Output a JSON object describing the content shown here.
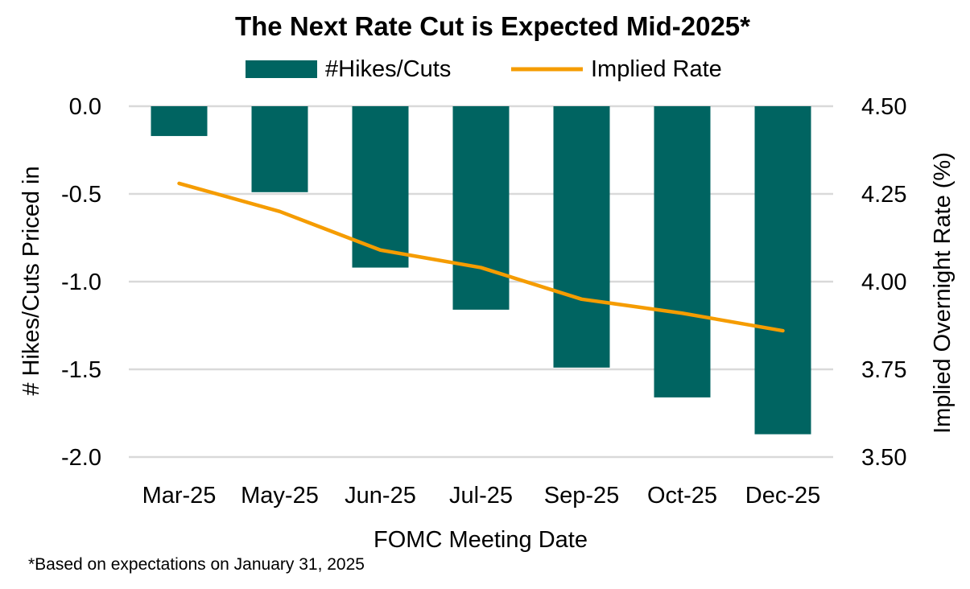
{
  "chart_data": {
    "type": "bar",
    "title": "The Next Rate Cut is Expected Mid-2025*",
    "xlabel": "FOMC Meeting Date",
    "ylabel": "# Hikes/Cuts Priced in",
    "y2label": "Implied Overnight Rate (%)",
    "categories": [
      "Mar-25",
      "May-25",
      "Jun-25",
      "Jul-25",
      "Sep-25",
      "Oct-25",
      "Dec-25"
    ],
    "series": [
      {
        "name": "#Hikes/Cuts",
        "type": "bar",
        "axis": "left",
        "color": "#006461",
        "values": [
          -0.17,
          -0.49,
          -0.92,
          -1.16,
          -1.49,
          -1.66,
          -1.87
        ]
      },
      {
        "name": "Implied Rate",
        "type": "line",
        "axis": "right",
        "color": "#F59C00",
        "values": [
          4.28,
          4.2,
          4.09,
          4.04,
          3.95,
          3.91,
          3.86
        ]
      }
    ],
    "ylim": [
      -2.0,
      0.0
    ],
    "yticks": [
      "0.0",
      "-0.5",
      "-1.0",
      "-1.5",
      "-2.0"
    ],
    "ytick_values": [
      0.0,
      -0.5,
      -1.0,
      -1.5,
      -2.0
    ],
    "y2lim": [
      3.5,
      4.5
    ],
    "y2ticks": [
      "4.50",
      "4.25",
      "4.00",
      "3.75",
      "3.50"
    ],
    "y2tick_values": [
      4.5,
      4.25,
      4.0,
      3.75,
      3.5
    ],
    "grid": true,
    "legend": "top-center",
    "footnote": "*Based on expectations on January 31, 2025"
  }
}
